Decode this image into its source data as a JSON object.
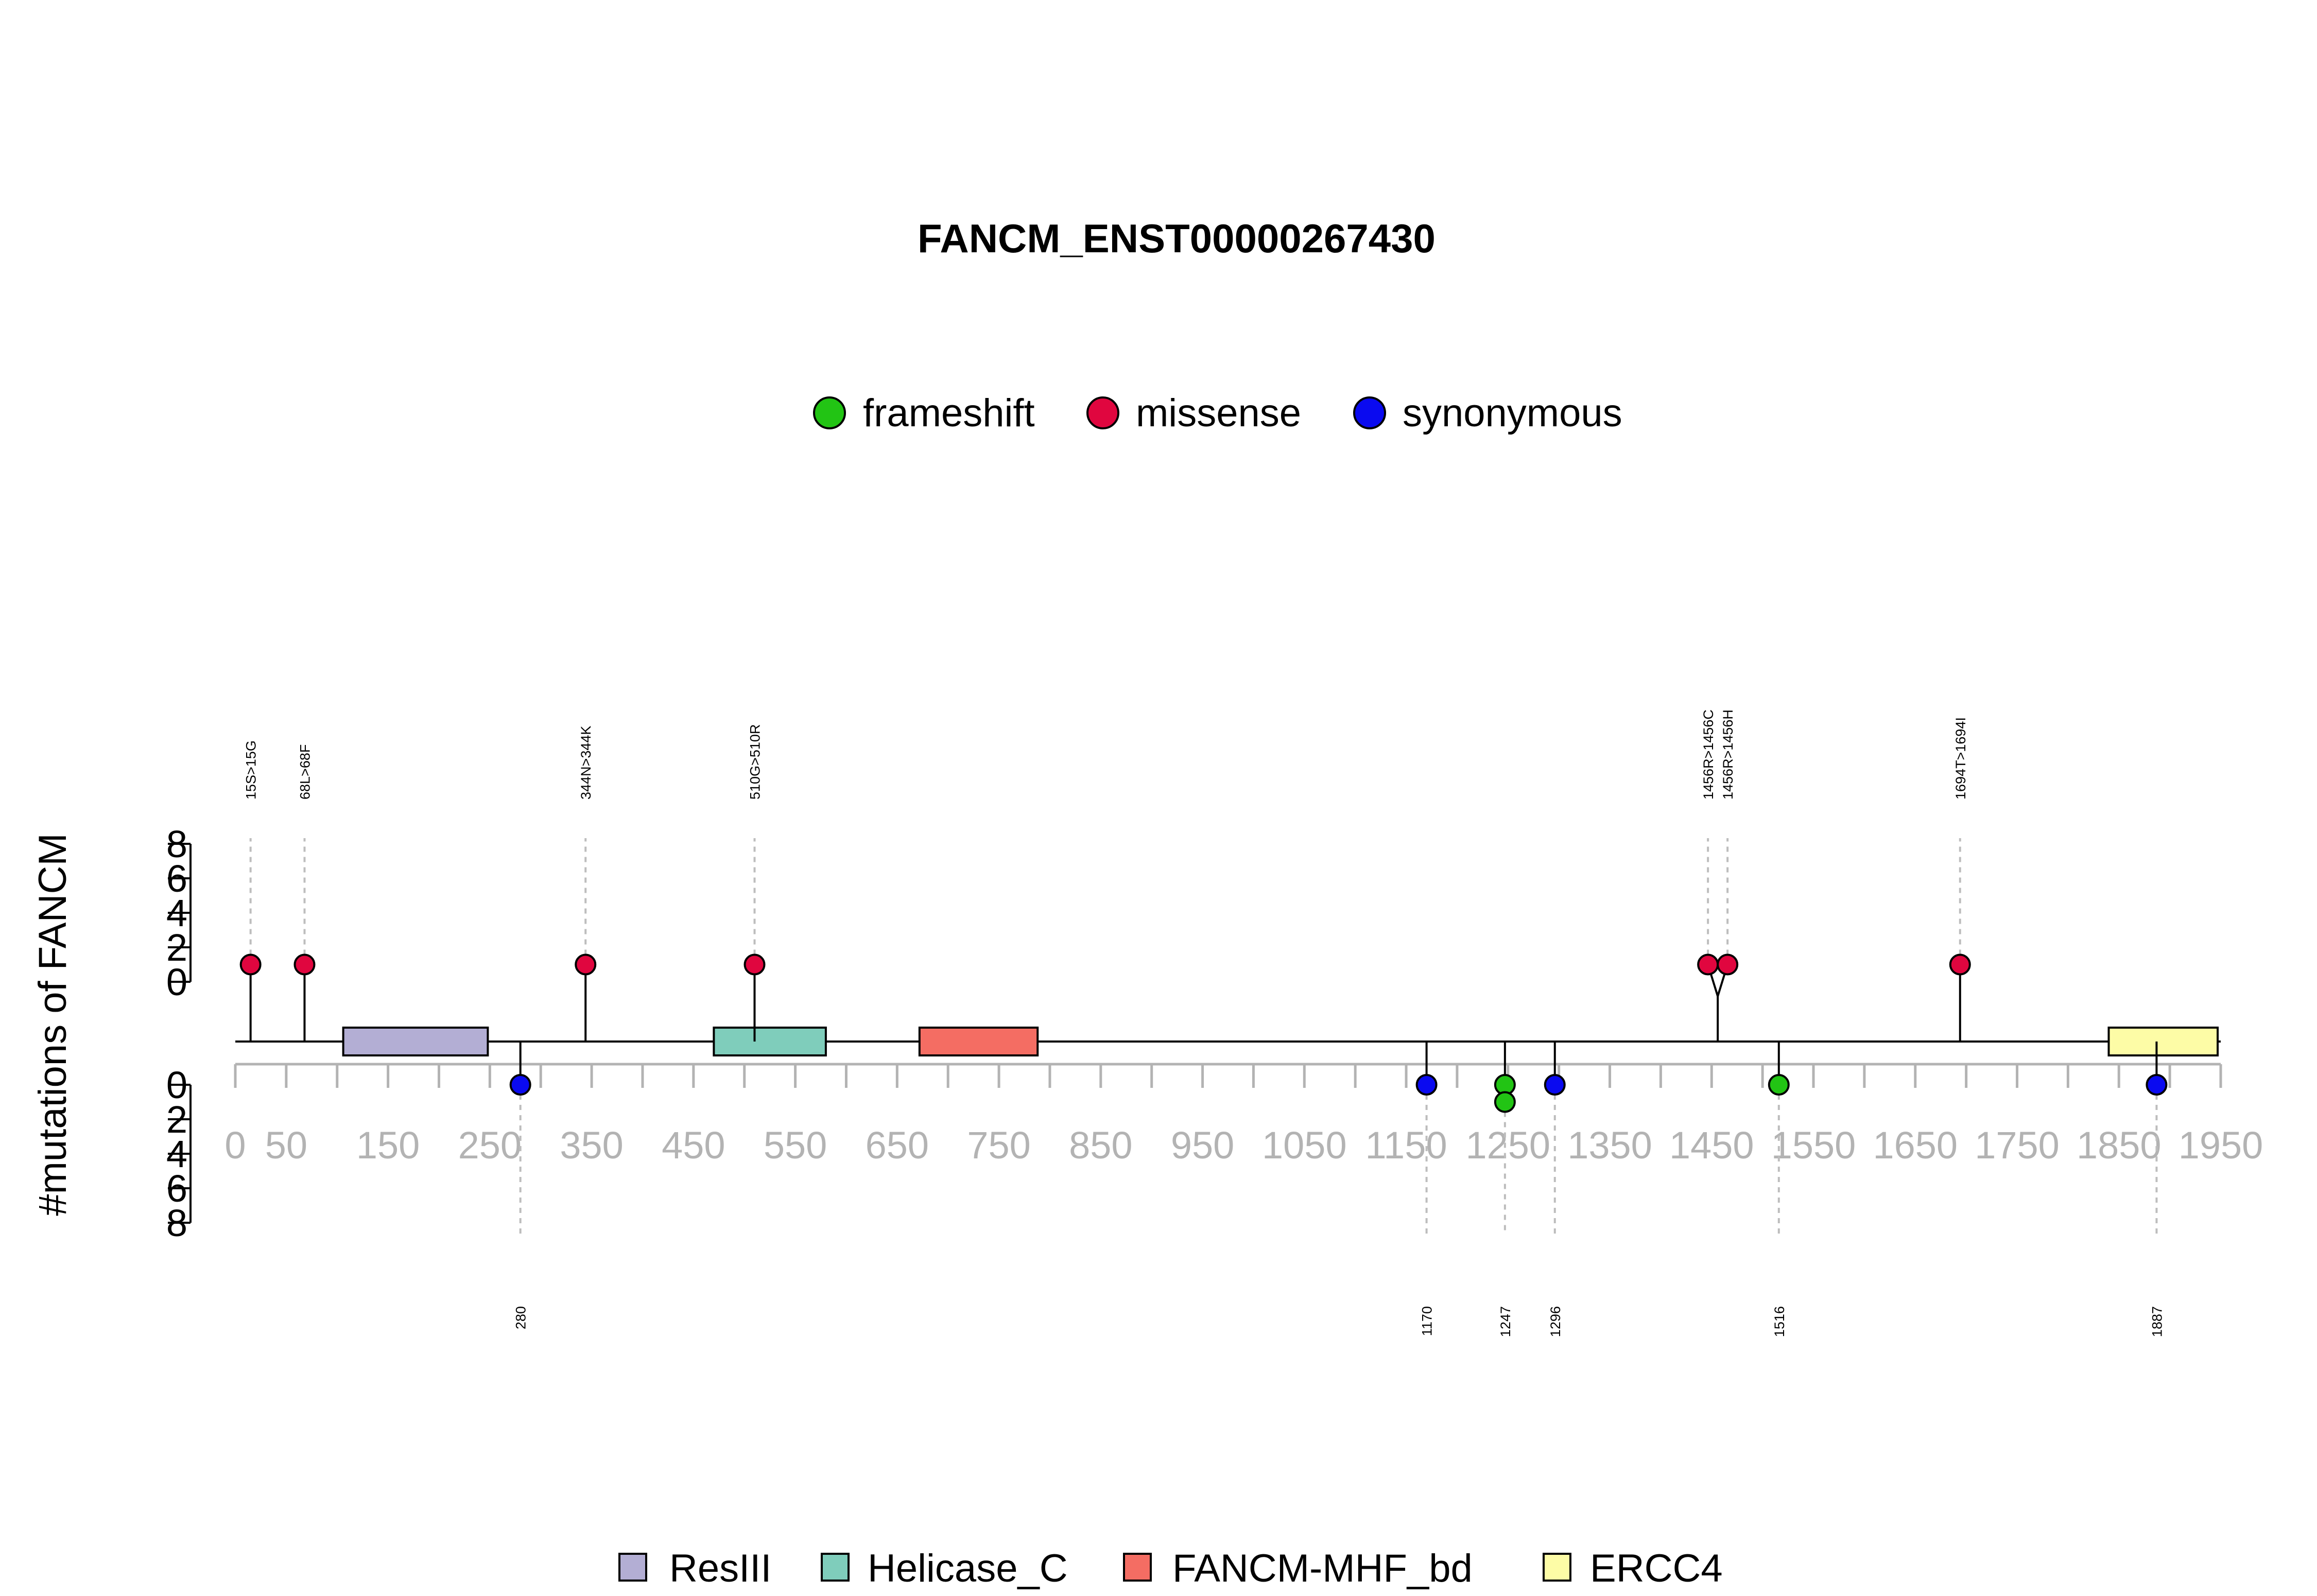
{
  "chart_data": {
    "type": "lollipop",
    "title": "FANCM_ENST00000267430",
    "ylabel": "#mutations of FANCM",
    "xlim": [
      0,
      1950
    ],
    "x_ticks": [
      0,
      50,
      150,
      250,
      350,
      450,
      550,
      650,
      750,
      850,
      950,
      1050,
      1150,
      1250,
      1350,
      1450,
      1550,
      1650,
      1750,
      1850,
      1950
    ],
    "y_ticks_upper": [
      0,
      2,
      4,
      6,
      8
    ],
    "y_ticks_lower": [
      0,
      2,
      4,
      6,
      8
    ],
    "legend_mutation": [
      {
        "label": "frameshift",
        "color": "#22c414"
      },
      {
        "label": "missense",
        "color": "#e0063f"
      },
      {
        "label": "synonymous",
        "color": "#0a0af0"
      }
    ],
    "legend_domains": [
      {
        "label": "ResIII",
        "color": "#b3aed4"
      },
      {
        "label": "Helicase_C",
        "color": "#7fcdbb"
      },
      {
        "label": "FANCM-MHF_bd",
        "color": "#f46d63"
      },
      {
        "label": "ERCC4",
        "color": "#fdfca6"
      }
    ],
    "domains": [
      {
        "name": "ResIII",
        "start": 106,
        "end": 248,
        "color": "#b3aed4"
      },
      {
        "name": "Helicase_C",
        "start": 470,
        "end": 580,
        "color": "#7fcdbb"
      },
      {
        "name": "FANCM-MHF_bd",
        "start": 672,
        "end": 788,
        "color": "#f46d63"
      },
      {
        "name": "ERCC4",
        "start": 1840,
        "end": 1947,
        "color": "#fdfca6"
      }
    ],
    "mutations_upper": [
      {
        "pos": 15,
        "label": "15S>15G",
        "type": "missense",
        "count": 1
      },
      {
        "pos": 68,
        "label": "68L>68F",
        "type": "missense",
        "count": 1
      },
      {
        "pos": 344,
        "label": "344N>344K",
        "type": "missense",
        "count": 1
      },
      {
        "pos": 510,
        "label": "510G>510R",
        "type": "missense",
        "count": 1
      },
      {
        "pos": 1456,
        "label": "1456R>1456C",
        "type": "missense",
        "count": 1
      },
      {
        "pos": 1456,
        "label": "1456R>1456H",
        "type": "missense",
        "count": 1
      },
      {
        "pos": 1694,
        "label": "1694T>1694I",
        "type": "missense",
        "count": 1
      }
    ],
    "mutations_lower": [
      {
        "pos": 280,
        "label": "280",
        "type": "synonymous",
        "count": 1
      },
      {
        "pos": 1170,
        "label": "1170",
        "type": "synonymous",
        "count": 1
      },
      {
        "pos": 1247,
        "label": "1247",
        "type": "frameshift",
        "count": 2
      },
      {
        "pos": 1296,
        "label": "1296",
        "type": "synonymous",
        "count": 1
      },
      {
        "pos": 1516,
        "label": "1516",
        "type": "frameshift",
        "count": 1
      },
      {
        "pos": 1887,
        "label": "1887",
        "type": "synonymous",
        "count": 1
      }
    ]
  }
}
